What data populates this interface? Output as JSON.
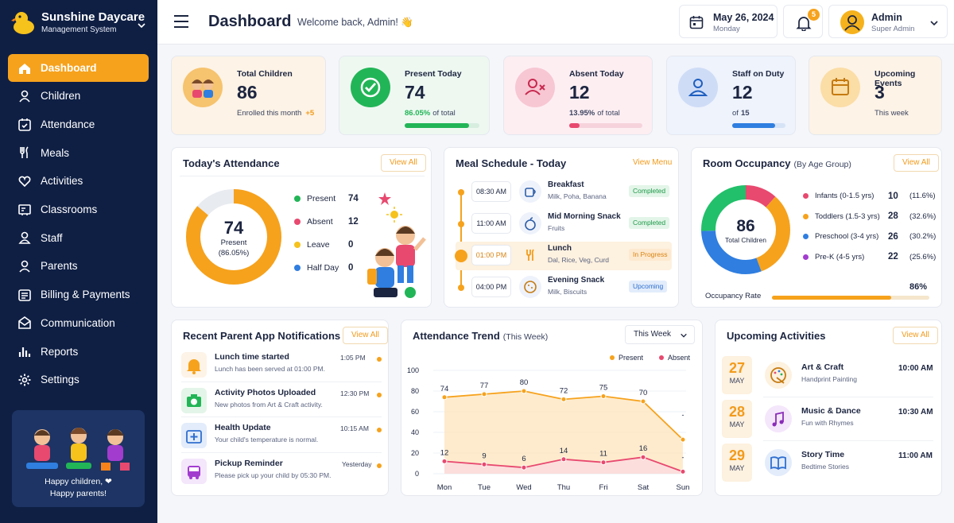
{
  "brand": {
    "name": "Sunshine Daycare",
    "subtitle": "Management System"
  },
  "nav": [
    {
      "label": "Dashboard",
      "icon": "home-icon",
      "active": true
    },
    {
      "label": "Children",
      "icon": "child-icon"
    },
    {
      "label": "Attendance",
      "icon": "calendar-check-icon"
    },
    {
      "label": "Meals",
      "icon": "utensils-icon"
    },
    {
      "label": "Activities",
      "icon": "heart-icon"
    },
    {
      "label": "Classrooms",
      "icon": "classroom-icon"
    },
    {
      "label": "Staff",
      "icon": "staff-icon"
    },
    {
      "label": "Parents",
      "icon": "parents-icon"
    },
    {
      "label": "Billing & Payments",
      "icon": "billing-icon"
    },
    {
      "label": "Communication",
      "icon": "envelope-icon"
    },
    {
      "label": "Reports",
      "icon": "reports-icon"
    },
    {
      "label": "Settings",
      "icon": "gear-icon"
    }
  ],
  "promo": {
    "line1": "Happy children, ❤",
    "line2": "Happy parents!"
  },
  "header": {
    "title": "Dashboard",
    "welcome": "Welcome back, Admin! 👋",
    "date": "May 26, 2024",
    "weekday": "Monday",
    "notifications": "5",
    "user_name": "Admin",
    "user_role": "Super Admin"
  },
  "stats": [
    {
      "label": "Total Children",
      "value": "86",
      "note": "Enrolled this month",
      "delta": "+5",
      "color": "#f6a21c"
    },
    {
      "label": "Present Today",
      "value": "74",
      "note_bold": "86.05%",
      "note": "of total",
      "progress": 0.86,
      "color": "#22b557"
    },
    {
      "label": "Absent Today",
      "value": "12",
      "note_bold": "13.95%",
      "note": "of total",
      "progress": 0.14,
      "color": "#e8496f"
    },
    {
      "label": "Staff on Duty",
      "value": "12",
      "note": "of",
      "note_bold": "15",
      "progress": 0.8,
      "color": "#2f7ee0"
    },
    {
      "label": "Upcoming Events",
      "value": "3",
      "note": "This week",
      "color": "#f6a21c"
    }
  ],
  "attendance": {
    "title": "Today's Attendance",
    "view_all": "View All",
    "center_value": "74",
    "center_label": "Present",
    "center_pct": "(86.05%)",
    "legend": [
      {
        "label": "Present",
        "value": "74",
        "color": "#22b557"
      },
      {
        "label": "Absent",
        "value": "12",
        "color": "#e8496f"
      },
      {
        "label": "Leave",
        "value": "0",
        "color": "#f6c21c"
      },
      {
        "label": "Half Day",
        "value": "0",
        "color": "#2f7ee0"
      }
    ]
  },
  "meals": {
    "title": "Meal Schedule - Today",
    "view_menu": "View Menu",
    "items": [
      {
        "time": "08:30 AM",
        "name": "Breakfast",
        "desc": "Milk, Poha, Banana",
        "status": "Completed"
      },
      {
        "time": "11:00 AM",
        "name": "Mid Morning Snack",
        "desc": "Fruits",
        "status": "Completed"
      },
      {
        "time": "01:00 PM",
        "name": "Lunch",
        "desc": "Dal, Rice, Veg, Curd",
        "status": "In Progress"
      },
      {
        "time": "04:00 PM",
        "name": "Evening Snack",
        "desc": "Milk, Biscuits",
        "status": "Upcoming"
      }
    ]
  },
  "rooms": {
    "title": "Room Occupancy",
    "subtitle": "(By Age Group)",
    "view_all": "View All",
    "center_value": "86",
    "center_label": "Total Children",
    "groups": [
      {
        "label": "Infants (0-1.5 yrs)",
        "value": "10",
        "pct": "(11.6%)",
        "color": "#e8496f"
      },
      {
        "label": "Toddlers (1.5-3 yrs)",
        "value": "28",
        "pct": "(32.6%)",
        "color": "#f6a21c"
      },
      {
        "label": "Preschool (3-4 yrs)",
        "value": "26",
        "pct": "(30.2%)",
        "color": "#2f7ee0"
      },
      {
        "label": "Pre-K (4-5 yrs)",
        "value": "22",
        "pct": "(25.6%)",
        "color": "#a23ccf"
      }
    ],
    "rate_label": "Occupancy Rate",
    "rate_value": "86%",
    "rate": 0.86
  },
  "notifications": {
    "title": "Recent Parent App Notifications",
    "view_all": "View All",
    "items": [
      {
        "title": "Lunch time started",
        "desc": "Lunch has been served at 01:00 PM.",
        "time": "1:05 PM",
        "icon": "bell-icon"
      },
      {
        "title": "Activity Photos Uploaded",
        "desc": "New photos from Art & Craft activity.",
        "time": "12:30 PM",
        "icon": "camera-icon"
      },
      {
        "title": "Health Update",
        "desc": "Your child's temperature is normal.",
        "time": "10:15 AM",
        "icon": "medical-kit-icon"
      },
      {
        "title": "Pickup Reminder",
        "desc": "Please pick up your child by 05:30 PM.",
        "time": "Yesterday",
        "icon": "bus-icon"
      }
    ]
  },
  "trend": {
    "title": "Attendance Trend",
    "subtitle": "(This Week)",
    "filter": "This Week",
    "legend_present": "Present",
    "legend_absent": "Absent"
  },
  "chart_data": {
    "type": "line",
    "x": [
      "Mon",
      "Tue",
      "Wed",
      "Thu",
      "Fri",
      "Sat",
      "Sun"
    ],
    "ylim": [
      0,
      100
    ],
    "yticks": [
      0,
      20,
      40,
      60,
      80,
      100
    ],
    "series": [
      {
        "name": "Present",
        "color": "#f6a21c",
        "values": [
          74,
          77,
          80,
          72,
          75,
          70,
          null
        ],
        "endpoint": 33
      },
      {
        "name": "Absent",
        "color": "#e8496f",
        "values": [
          12,
          9,
          6,
          14,
          11,
          16,
          null
        ],
        "endpoint": 2
      }
    ],
    "sun_labels": [
      "-",
      "-"
    ]
  },
  "activities": {
    "title": "Upcoming Activities",
    "view_all": "View All",
    "items": [
      {
        "day": "27",
        "month": "MAY",
        "name": "Art & Craft",
        "desc": "Handprint Painting",
        "time": "10:00 AM",
        "icon": "palette-icon"
      },
      {
        "day": "28",
        "month": "MAY",
        "name": "Music & Dance",
        "desc": "Fun with Rhymes",
        "time": "10:30 AM",
        "icon": "music-note-icon"
      },
      {
        "day": "29",
        "month": "MAY",
        "name": "Story Time",
        "desc": "Bedtime Stories",
        "time": "11:00 AM",
        "icon": "book-icon"
      }
    ]
  }
}
